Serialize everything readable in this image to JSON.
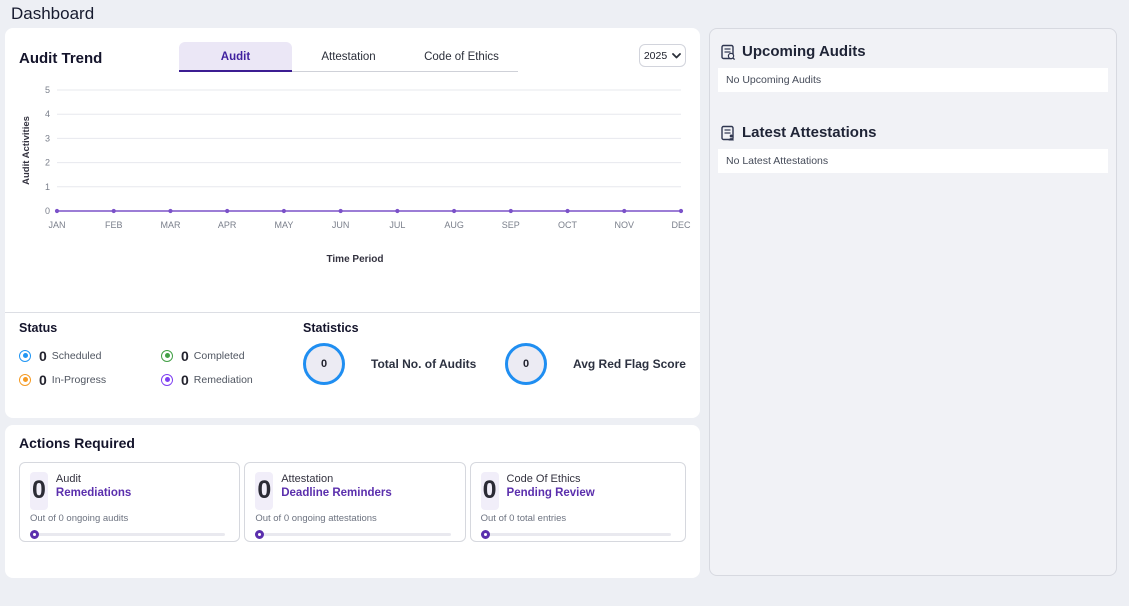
{
  "page": {
    "title": "Dashboard"
  },
  "audit_trend": {
    "title": "Audit Trend",
    "tabs": [
      {
        "label": "Audit",
        "selected": true
      },
      {
        "label": "Attestation",
        "selected": false
      },
      {
        "label": "Code of Ethics",
        "selected": false
      }
    ],
    "year_select": {
      "value": "2025"
    }
  },
  "chart_data": {
    "type": "line",
    "x": [
      "JAN",
      "FEB",
      "MAR",
      "APR",
      "MAY",
      "JUN",
      "JUL",
      "AUG",
      "SEP",
      "OCT",
      "NOV",
      "DEC"
    ],
    "series": [
      {
        "name": "Audit Activities",
        "values": [
          0,
          0,
          0,
          0,
          0,
          0,
          0,
          0,
          0,
          0,
          0,
          0
        ]
      }
    ],
    "title": "",
    "xlabel": "Time Period",
    "ylabel": "Audit Activities",
    "ylim": [
      0,
      5
    ],
    "yticks": [
      0,
      1,
      2,
      3,
      4,
      5
    ],
    "grid": true,
    "legend": false,
    "line_color": "#7b52c9"
  },
  "status": {
    "title": "Status",
    "items": [
      {
        "value": "0",
        "label": "Scheduled",
        "color": "#2196f3"
      },
      {
        "value": "0",
        "label": "In-Progress",
        "color": "#f59a23"
      },
      {
        "value": "0",
        "label": "Completed",
        "color": "#43a047"
      },
      {
        "value": "0",
        "label": "Remediation",
        "color": "#7e3ff2"
      }
    ]
  },
  "statistics": {
    "title": "Statistics",
    "items": [
      {
        "value": "0",
        "label": "Total No. of Audits"
      },
      {
        "value": "0",
        "label": "Avg Red Flag Score"
      }
    ],
    "circle_color": "#1f8ef1"
  },
  "actions_required": {
    "title": "Actions Required",
    "cards": [
      {
        "count": "0",
        "line1": "Audit",
        "line2": "Remediations",
        "caption": "Out of 0 ongoing audits"
      },
      {
        "count": "0",
        "line1": "Attestation",
        "line2": "Deadline Reminders",
        "caption": "Out of 0 ongoing attestations"
      },
      {
        "count": "0",
        "line1": "Code Of Ethics",
        "line2": "Pending Review",
        "caption": "Out of 0 total entries"
      }
    ],
    "accent_color": "#5b2fad"
  },
  "right_panel": {
    "upcoming": {
      "title": "Upcoming Audits",
      "empty_message": "No Upcoming Audits"
    },
    "attestations": {
      "title": "Latest Attestations",
      "empty_message": "No Latest Attestations"
    }
  }
}
